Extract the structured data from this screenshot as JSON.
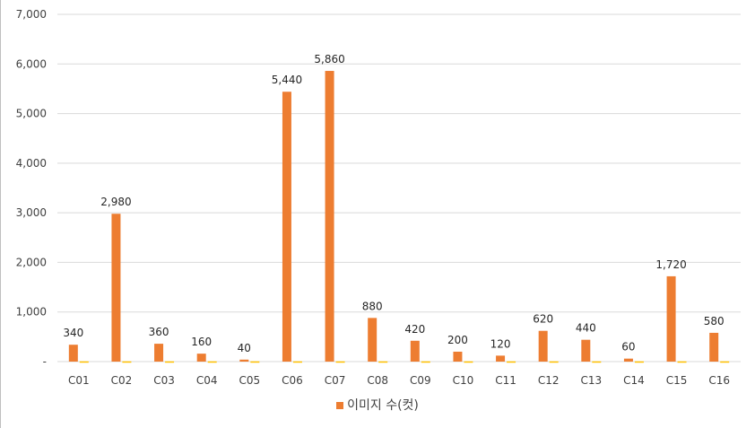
{
  "chart_data": {
    "type": "bar",
    "categories": [
      "C01",
      "C02",
      "C03",
      "C04",
      "C05",
      "C06",
      "C07",
      "C08",
      "C09",
      "C10",
      "C11",
      "C12",
      "C13",
      "C14",
      "C15",
      "C16"
    ],
    "series": [
      {
        "name": "이미지 수(컷)",
        "color": "#ed7d31",
        "values": [
          340,
          2980,
          360,
          160,
          40,
          5440,
          5860,
          880,
          420,
          200,
          120,
          620,
          440,
          60,
          1720,
          580
        ],
        "labels": [
          "340",
          "2,980",
          "360",
          "160",
          "40",
          "5,440",
          "5,860",
          "880",
          "420",
          "200",
          "120",
          "620",
          "440",
          "60",
          "1,720",
          "580"
        ]
      },
      {
        "color": "#ffc000",
        "values": [
          5,
          5,
          5,
          5,
          5,
          5,
          5,
          5,
          5,
          5,
          5,
          5,
          5,
          5,
          5,
          5
        ]
      }
    ],
    "ylim": [
      0,
      7000
    ],
    "yticks": [
      0,
      1000,
      2000,
      3000,
      4000,
      5000,
      6000,
      7000
    ],
    "ytick_labels": [
      "-",
      "1,000",
      "2,000",
      "3,000",
      "4,000",
      "5,000",
      "6,000",
      "7,000"
    ],
    "grid": true,
    "legend_position": "bottom",
    "title": "",
    "xlabel": "",
    "ylabel": ""
  }
}
